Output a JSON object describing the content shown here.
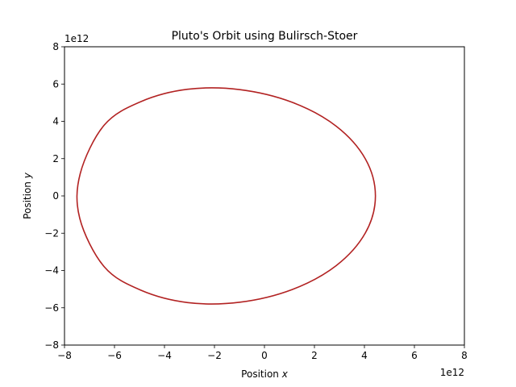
{
  "chart_data": {
    "type": "line",
    "title": "Pluto's Orbit using Bulirsch-Stoer",
    "xlabel_prefix": "Position ",
    "xlabel_var": "x",
    "ylabel_prefix": "Position ",
    "ylabel_var": "y",
    "x_offset_text": "1e12",
    "y_offset_text": "1e12",
    "scale": 1000000000000.0,
    "xlim": [
      -8,
      8
    ],
    "ylim": [
      -8,
      8
    ],
    "xticks": [
      -8,
      -6,
      -4,
      -2,
      0,
      2,
      4,
      6,
      8
    ],
    "yticks": [
      -8,
      -6,
      -4,
      -2,
      0,
      2,
      4,
      6,
      8
    ],
    "xtick_labels": [
      "−8",
      "−6",
      "−4",
      "−2",
      "0",
      "2",
      "4",
      "6",
      "8"
    ],
    "ytick_labels": [
      "−8",
      "−6",
      "−4",
      "−2",
      "0",
      "2",
      "4",
      "6",
      "8"
    ],
    "grid": false,
    "series": [
      {
        "color": "#b22222",
        "x": [
          4.44,
          4.04,
          2.87,
          1.11,
          -0.98,
          -3.07,
          -4.94,
          -6.41,
          -7.37,
          -7.39,
          -6.41,
          -4.94,
          -3.07,
          -0.98,
          1.11,
          2.87,
          4.04,
          4.44
        ],
        "y": [
          0,
          1.98,
          3.74,
          5.02,
          5.7,
          5.72,
          5.06,
          3.8,
          1.2,
          -1.2,
          -3.8,
          -5.06,
          -5.72,
          -5.7,
          -5.02,
          -3.74,
          -1.98,
          0
        ]
      }
    ]
  }
}
